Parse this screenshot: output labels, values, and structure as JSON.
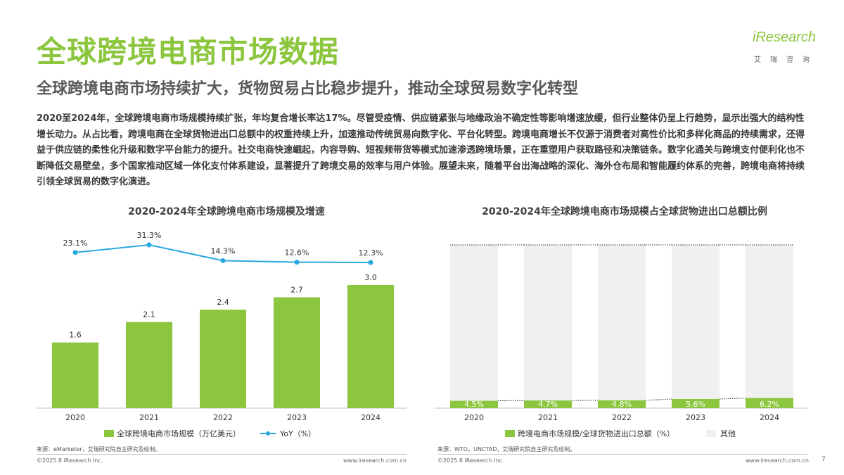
{
  "page": {
    "title": "全球跨境电商市场数据",
    "subtitle": "全球跨境电商市场持续扩大，货物贸易占比稳步提升，推动全球贸易数字化转型",
    "body": "2020至2024年，全球跨境电商市场规模持续扩张，年均复合增长率达17%。尽管受疫情、供应链紧张与地缘政治不确定性等影响增速放缓，但行业整体仍呈上行趋势，显示出强大的结构性增长动力。从占比看，跨境电商在全球货物进出口总额中的权重持续上升，加速推动传统贸易向数字化、平台化转型。跨境电商增长不仅源于消费者对高性价比和多样化商品的持续需求，还得益于供应链的柔性化升级和数字平台能力的提升。社交电商快速崛起，内容导购、短视频带货等模式加速渗透跨境场景，正在重塑用户获取路径和决策链条。数字化通关与跨境支付便利化也不断降低交易壁垒，多个国家推动区域一体化支付体系建设，显著提升了跨境交易的效率与用户体验。展望未来，随着平台出海战略的深化、海外仓布局和智能履约体系的完善，跨境电商将持续引领全球贸易的数字化演进。",
    "page_number": "7"
  },
  "logo": {
    "word": "iResearch",
    "sub": "艾瑞咨询"
  },
  "colors": {
    "green": "#8cc63f",
    "blue": "#29a8e0",
    "grey_bar": "#f0f0f0"
  },
  "footer": {
    "source1": "来源：eMarketer，艾瑞研究院自主研究及绘制。",
    "source2": "来源：WTO，UNCTAD，艾瑞研究院自主研究及绘制。",
    "copyright": "©2025.8 iResearch Inc.",
    "url": "www.iresearch.com.cn"
  },
  "chart_data": [
    {
      "type": "bar",
      "title": "2020-2024年全球跨境电商市场规模及增速",
      "categories": [
        "2020",
        "2021",
        "2022",
        "2023",
        "2024"
      ],
      "series": [
        {
          "name": "全球跨境电商市场规模（万亿美元）",
          "type": "bar",
          "values": [
            1.6,
            2.1,
            2.4,
            2.7,
            3.0
          ],
          "labels": [
            "1.6",
            "2.1",
            "2.4",
            "2.7",
            "3.0"
          ]
        },
        {
          "name": "YoY（%）",
          "type": "line",
          "values": [
            23.1,
            31.3,
            14.3,
            12.6,
            12.3
          ],
          "labels": [
            "23.1%",
            "31.3%",
            "14.3%",
            "12.6%",
            "12.3%"
          ]
        }
      ],
      "legend": "bottom"
    },
    {
      "type": "bar",
      "stacked": "percent",
      "title": "2020-2024年全球跨境电商市场规模占全球货物进出口总额比例",
      "categories": [
        "2020",
        "2021",
        "2022",
        "2023",
        "2024"
      ],
      "series": [
        {
          "name": "跨境电商市场规模/全球货物进出口总额（%）",
          "values": [
            4.5,
            4.7,
            4.8,
            5.6,
            6.2
          ],
          "labels": [
            "4.5%",
            "4.7%",
            "4.8%",
            "5.6%",
            "6.2%"
          ]
        },
        {
          "name": "其他",
          "values": [
            95.5,
            95.3,
            95.2,
            94.4,
            93.8
          ]
        }
      ],
      "legend": "bottom"
    }
  ]
}
